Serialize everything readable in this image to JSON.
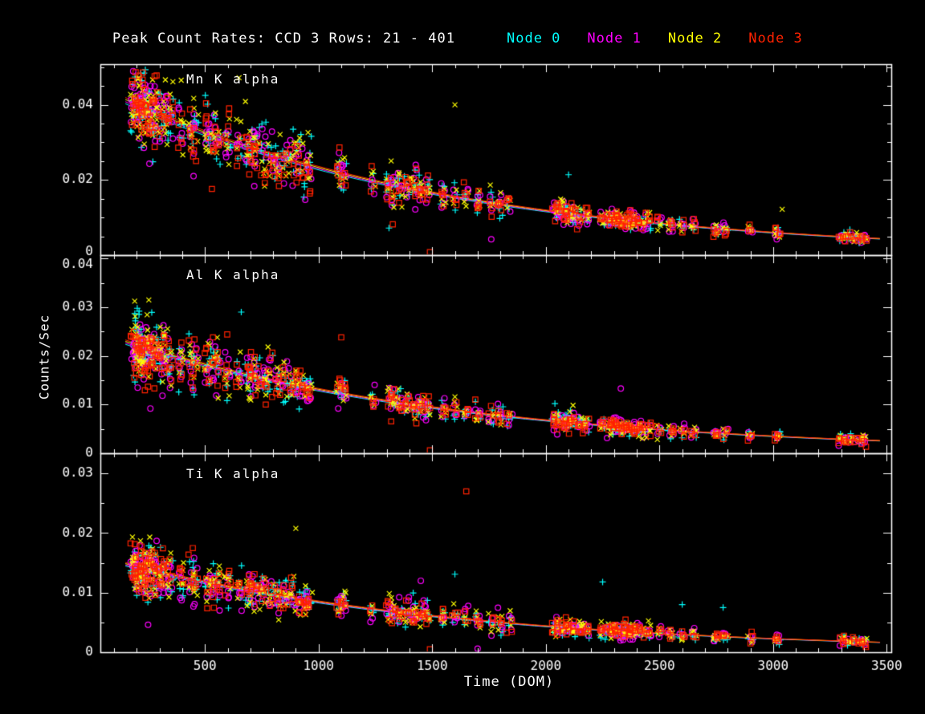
{
  "title": "Peak Count Rates: CCD 3 Rows: 21 - 401",
  "legend": [
    {
      "label": "Node 0",
      "color": "#00ffff"
    },
    {
      "label": "Node 1",
      "color": "#ff00ff"
    },
    {
      "label": "Node 2",
      "color": "#ffff00"
    },
    {
      "label": "Node 3",
      "color": "#ff2200"
    }
  ],
  "axes": {
    "xlabel": "Time (DOM)",
    "ylabel": "Counts/Sec"
  },
  "chart_data": {
    "type": "scatter",
    "title": "Peak Count Rates: CCD 3 Rows: 21 - 401",
    "xlabel": "Time (DOM)",
    "ylabel": "Counts/Sec",
    "xlim": [
      40,
      3520
    ],
    "xticks": [
      500,
      1000,
      1500,
      2000,
      2500,
      3000,
      3500
    ],
    "x_minor_step": 100,
    "grid": false,
    "legend_position": "top-right",
    "background": "#000000",
    "axis_color": "#ffffff",
    "nodes": [
      {
        "name": "Node 0",
        "color": "#00ffff",
        "marker": "plus"
      },
      {
        "name": "Node 1",
        "color": "#ff00ff",
        "marker": "circle"
      },
      {
        "name": "Node 2",
        "color": "#ffff00",
        "marker": "cross"
      },
      {
        "name": "Node 3",
        "color": "#ff2200",
        "marker": "square"
      }
    ],
    "cluster_times": [
      [
        185,
        7
      ],
      [
        200,
        8
      ],
      [
        215,
        8
      ],
      [
        230,
        7
      ],
      [
        245,
        7
      ],
      [
        260,
        6
      ],
      [
        275,
        6
      ],
      [
        290,
        6
      ],
      [
        310,
        5
      ],
      [
        330,
        5
      ],
      [
        350,
        4
      ],
      [
        395,
        5
      ],
      [
        440,
        5
      ],
      [
        460,
        4
      ],
      [
        510,
        5
      ],
      [
        530,
        4
      ],
      [
        555,
        5
      ],
      [
        600,
        5
      ],
      [
        650,
        4
      ],
      [
        690,
        5
      ],
      [
        710,
        5
      ],
      [
        730,
        4
      ],
      [
        760,
        5
      ],
      [
        790,
        4
      ],
      [
        820,
        5
      ],
      [
        850,
        4
      ],
      [
        880,
        4
      ],
      [
        910,
        5
      ],
      [
        940,
        4
      ],
      [
        960,
        4
      ],
      [
        1090,
        4
      ],
      [
        1110,
        4
      ],
      [
        1240,
        3
      ],
      [
        1310,
        4
      ],
      [
        1330,
        4
      ],
      [
        1360,
        4
      ],
      [
        1390,
        4
      ],
      [
        1420,
        5
      ],
      [
        1450,
        5
      ],
      [
        1480,
        4
      ],
      [
        1550,
        4
      ],
      [
        1600,
        3
      ],
      [
        1650,
        3
      ],
      [
        1700,
        4
      ],
      [
        1760,
        3
      ],
      [
        1800,
        4
      ],
      [
        1840,
        3
      ],
      [
        2040,
        4
      ],
      [
        2060,
        4
      ],
      [
        2080,
        4
      ],
      [
        2100,
        5
      ],
      [
        2120,
        4
      ],
      [
        2150,
        4
      ],
      [
        2180,
        4
      ],
      [
        2250,
        4
      ],
      [
        2280,
        5
      ],
      [
        2300,
        5
      ],
      [
        2320,
        5
      ],
      [
        2340,
        5
      ],
      [
        2360,
        5
      ],
      [
        2380,
        5
      ],
      [
        2400,
        4
      ],
      [
        2420,
        4
      ],
      [
        2450,
        4
      ],
      [
        2500,
        3
      ],
      [
        2550,
        4
      ],
      [
        2600,
        3
      ],
      [
        2650,
        3
      ],
      [
        2750,
        4
      ],
      [
        2790,
        3
      ],
      [
        2900,
        3
      ],
      [
        3020,
        4
      ],
      [
        3300,
        3
      ],
      [
        3320,
        3
      ],
      [
        3350,
        3
      ],
      [
        3380,
        3
      ],
      [
        3400,
        3
      ]
    ],
    "panels": [
      {
        "label": "Mn K alpha",
        "ylim": [
          0,
          0.0508
        ],
        "yticks": [
          0,
          0.02,
          0.04
        ],
        "y_minor_step": 0.005,
        "scatter": 0.12,
        "trend": {
          "model": "exponential",
          "amplitude": 0.0455,
          "tau": 1480
        },
        "trend_points": [
          [
            200,
            0.0397
          ],
          [
            450,
            0.0336
          ],
          [
            700,
            0.0284
          ],
          [
            950,
            0.0239
          ],
          [
            1200,
            0.0202
          ],
          [
            1450,
            0.0171
          ],
          [
            1700,
            0.0144
          ],
          [
            1950,
            0.0122
          ],
          [
            2200,
            0.0103
          ],
          [
            2450,
            0.0087
          ],
          [
            2700,
            0.0073
          ],
          [
            2950,
            0.0062
          ],
          [
            3200,
            0.0052
          ],
          [
            3450,
            0.0044
          ]
        ],
        "outliers": [
          [
            1600,
            0.04,
            2
          ],
          [
            650,
            0.0472,
            2
          ],
          [
            450,
            0.021,
            1
          ],
          [
            2100,
            0.0214,
            0
          ],
          [
            1310,
            0.0072,
            0
          ],
          [
            1760,
            0.0042,
            1
          ],
          [
            3040,
            0.0122,
            2
          ],
          [
            1490,
            0.0008,
            3
          ]
        ]
      },
      {
        "label": "Al K alpha",
        "ylim": [
          0,
          0.0407
        ],
        "yticks": [
          0,
          0.01,
          0.02,
          0.03,
          0.04
        ],
        "y_minor_step": 0.005,
        "scatter": 0.14,
        "trend": {
          "model": "exponential",
          "amplitude": 0.0252,
          "tau": 1520
        },
        "trend_points": [
          [
            200,
            0.0221
          ],
          [
            450,
            0.0187
          ],
          [
            700,
            0.0159
          ],
          [
            950,
            0.0135
          ],
          [
            1200,
            0.0114
          ],
          [
            1450,
            0.0097
          ],
          [
            1700,
            0.0082
          ],
          [
            1950,
            0.007
          ],
          [
            2200,
            0.0059
          ],
          [
            2450,
            0.005
          ],
          [
            2700,
            0.0043
          ],
          [
            2950,
            0.0036
          ],
          [
            3200,
            0.0031
          ],
          [
            3450,
            0.0026
          ]
        ],
        "outliers": [
          [
            1100,
            0.0238,
            3
          ],
          [
            2330,
            0.0133,
            1
          ],
          [
            260,
            0.0092,
            1
          ],
          [
            2040,
            0.0102,
            0
          ],
          [
            660,
            0.029,
            0
          ],
          [
            1490,
            0.0006,
            3
          ]
        ]
      },
      {
        "label": "Ti K alpha",
        "ylim": [
          0,
          0.0334
        ],
        "yticks": [
          0,
          0.01,
          0.02,
          0.03
        ],
        "y_minor_step": 0.005,
        "scatter": 0.15,
        "trend": {
          "model": "exponential",
          "amplitude": 0.0163,
          "tau": 1520
        },
        "trend_points": [
          [
            200,
            0.0143
          ],
          [
            450,
            0.0121
          ],
          [
            700,
            0.0103
          ],
          [
            950,
            0.0087
          ],
          [
            1200,
            0.0074
          ],
          [
            1450,
            0.0063
          ],
          [
            1700,
            0.0053
          ],
          [
            1950,
            0.0045
          ],
          [
            2200,
            0.0038
          ],
          [
            2450,
            0.0033
          ],
          [
            2700,
            0.0028
          ],
          [
            2950,
            0.0023
          ],
          [
            3200,
            0.002
          ],
          [
            3450,
            0.0017
          ]
        ],
        "outliers": [
          [
            1650,
            0.027,
            3
          ],
          [
            900,
            0.0208,
            2
          ],
          [
            1600,
            0.0131,
            0
          ],
          [
            2250,
            0.0118,
            0
          ],
          [
            1450,
            0.012,
            1
          ],
          [
            1700,
            0.0006,
            1
          ],
          [
            2600,
            0.008,
            0
          ],
          [
            2780,
            0.0075,
            0
          ],
          [
            250,
            0.0046,
            1
          ],
          [
            1490,
            0.0005,
            3
          ]
        ]
      }
    ]
  }
}
